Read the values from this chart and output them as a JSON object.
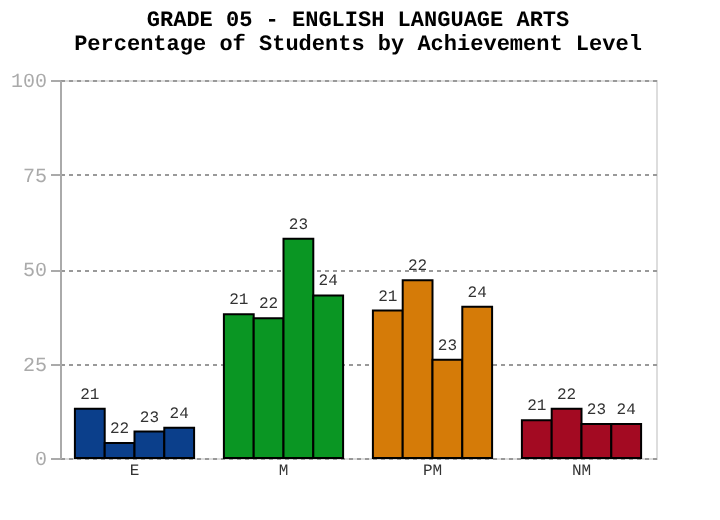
{
  "chart_data": {
    "type": "bar",
    "title": "GRADE 05 - ENGLISH LANGUAGE ARTS",
    "subtitle": "Percentage of Students by Achievement Level",
    "categories": [
      "E",
      "M",
      "PM",
      "NM"
    ],
    "series": [
      {
        "name": "21",
        "colors": [
          "#0b3f8b",
          "#0a9623",
          "#d57b08",
          "#a30a22"
        ],
        "values": [
          13,
          38,
          39,
          10
        ]
      },
      {
        "name": "22",
        "colors": [
          "#0b3f8b",
          "#0a9623",
          "#d57b08",
          "#a30a22"
        ],
        "values": [
          4,
          37,
          47,
          13
        ]
      },
      {
        "name": "23",
        "colors": [
          "#0b3f8b",
          "#0a9623",
          "#d57b08",
          "#a30a22"
        ],
        "values": [
          7,
          58,
          26,
          9
        ]
      },
      {
        "name": "24",
        "colors": [
          "#0b3f8b",
          "#0a9623",
          "#d57b08",
          "#a30a22"
        ],
        "values": [
          8,
          43,
          40,
          9
        ]
      }
    ],
    "ylim": [
      0,
      100
    ],
    "yticks": [
      0,
      25,
      50,
      75,
      100
    ],
    "grid": "y"
  }
}
